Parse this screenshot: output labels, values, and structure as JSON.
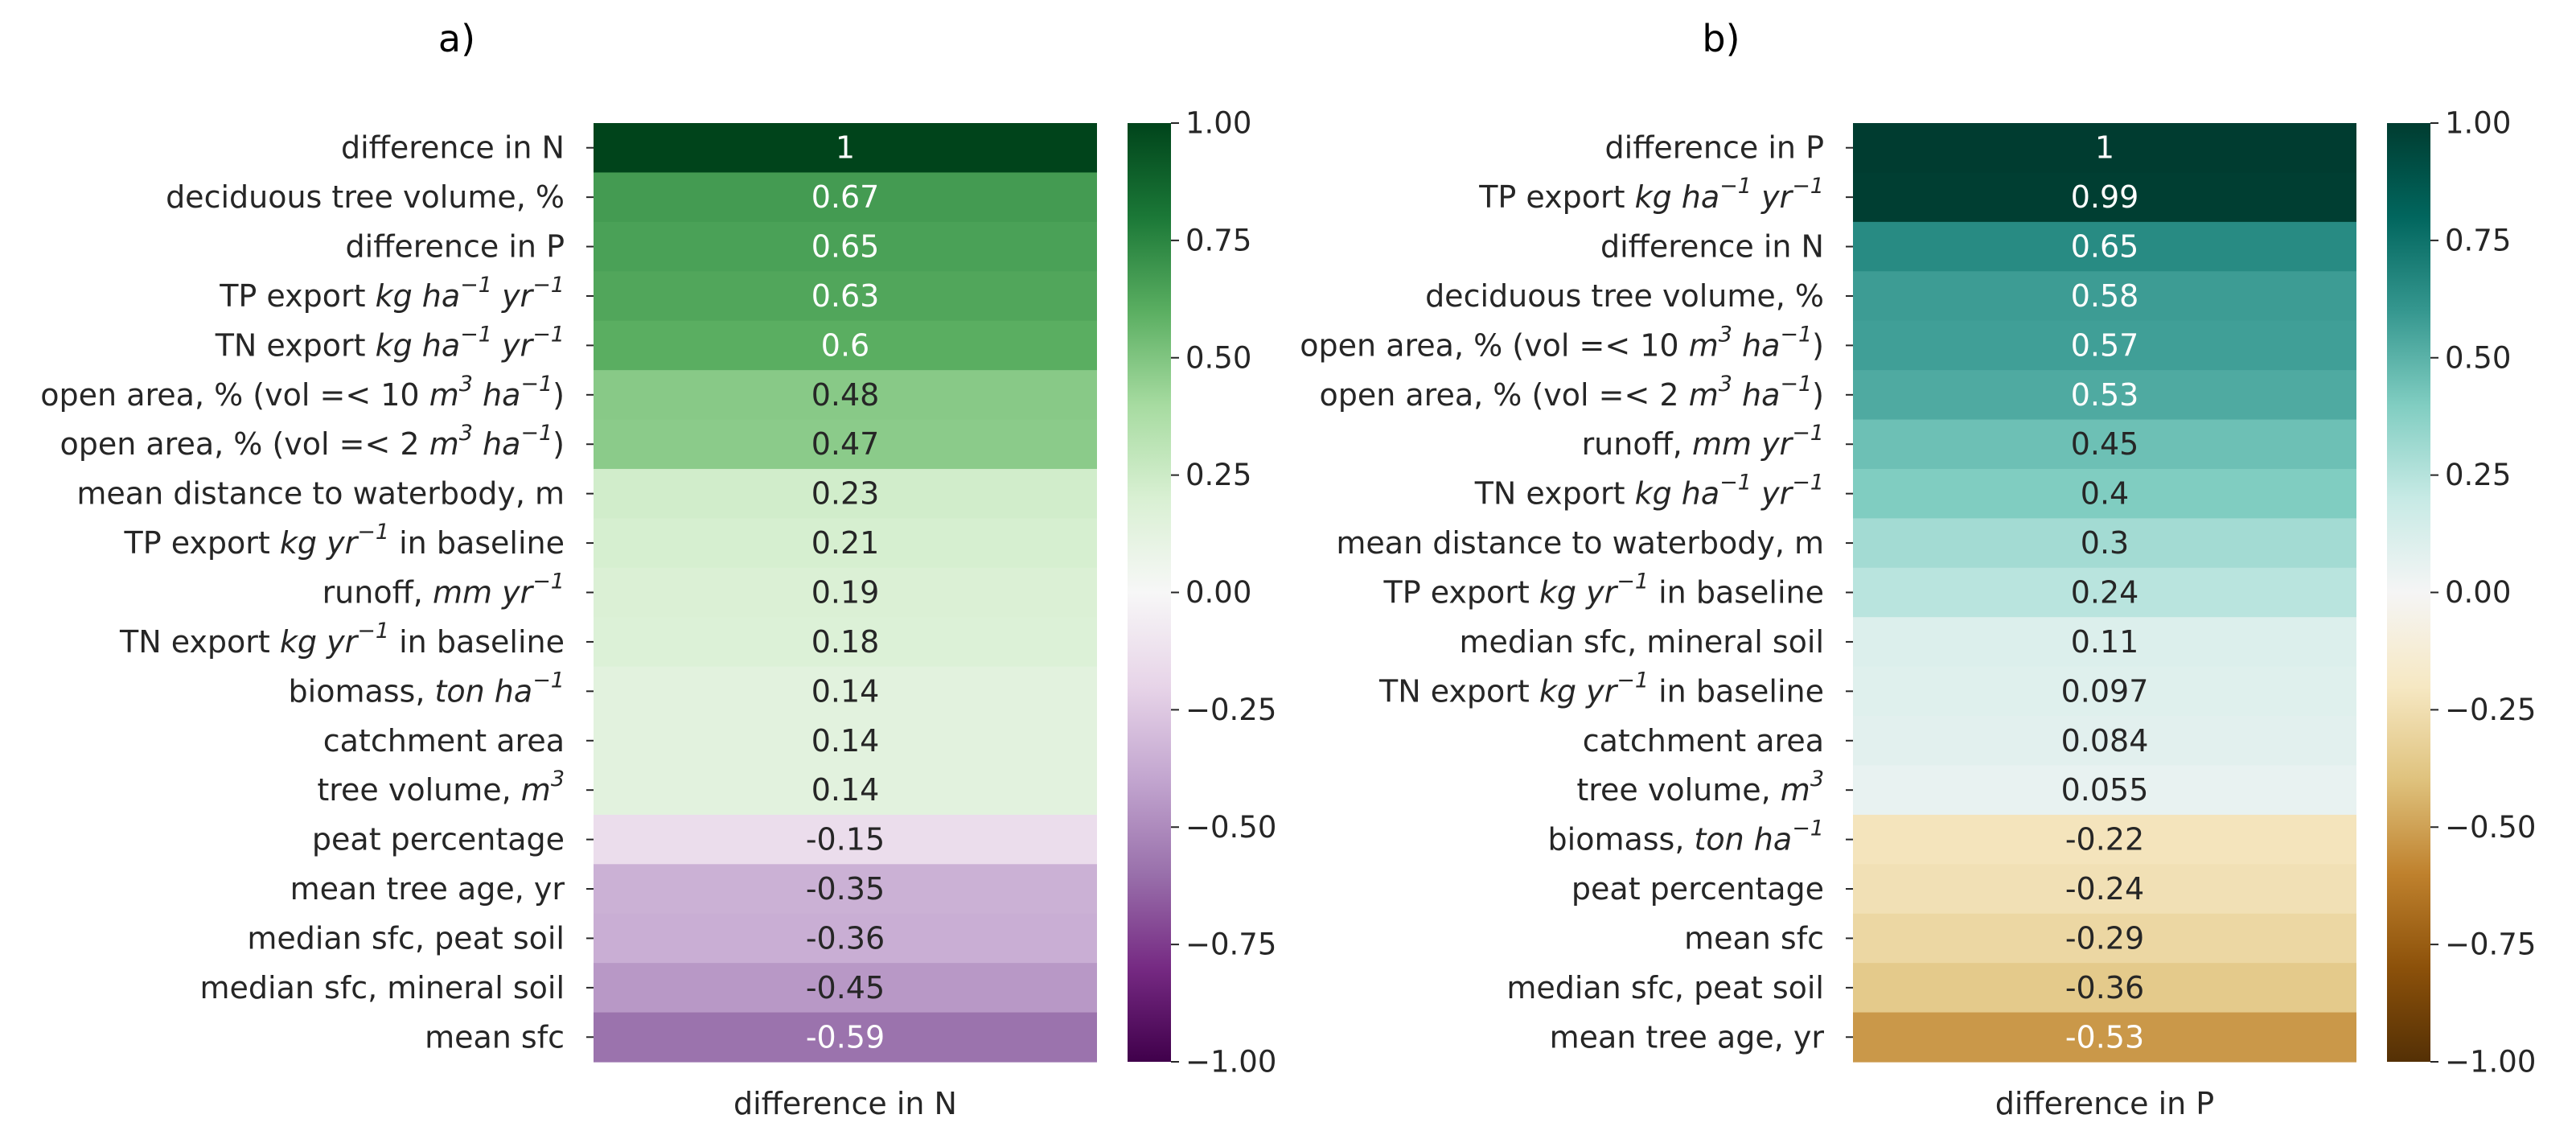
{
  "chart_data": [
    {
      "type": "heatmap",
      "panel_label": "a)",
      "xlabel": "difference in N",
      "colormap": "PRGn",
      "vmin": -1.0,
      "vmax": 1.0,
      "colorbar_ticks": [
        "1.00",
        "0.75",
        "0.50",
        "0.25",
        "0.00",
        "−0.25",
        "−0.50",
        "−0.75",
        "−1.00"
      ],
      "colorbar_tick_values": [
        1.0,
        0.75,
        0.5,
        0.25,
        0.0,
        -0.25,
        -0.5,
        -0.75,
        -1.0
      ],
      "rows": [
        {
          "segs": [
            {
              "t": "difference in N"
            }
          ],
          "label_value": "1",
          "value": 1.0
        },
        {
          "segs": [
            {
              "t": "deciduous tree volume, %"
            }
          ],
          "label_value": "0.67",
          "value": 0.67
        },
        {
          "segs": [
            {
              "t": "difference in P"
            }
          ],
          "label_value": "0.65",
          "value": 0.65
        },
        {
          "segs": [
            {
              "t": "TP export "
            },
            {
              "t": "kg ha",
              "i": true
            },
            {
              "t": "−1",
              "i": true,
              "s": true
            },
            {
              "t": " yr",
              "i": true
            },
            {
              "t": "−1",
              "i": true,
              "s": true
            }
          ],
          "label_value": "0.63",
          "value": 0.63
        },
        {
          "segs": [
            {
              "t": "TN export "
            },
            {
              "t": "kg ha",
              "i": true
            },
            {
              "t": "−1",
              "i": true,
              "s": true
            },
            {
              "t": " yr",
              "i": true
            },
            {
              "t": "−1",
              "i": true,
              "s": true
            }
          ],
          "label_value": "0.6",
          "value": 0.6
        },
        {
          "segs": [
            {
              "t": "open area, % (vol =< 10 "
            },
            {
              "t": "m",
              "i": true
            },
            {
              "t": "3",
              "i": true,
              "s": true
            },
            {
              "t": " ha",
              "i": true
            },
            {
              "t": "−1",
              "i": true,
              "s": true
            },
            {
              "t": ")"
            }
          ],
          "label_value": "0.48",
          "value": 0.48
        },
        {
          "segs": [
            {
              "t": "open area, % (vol =< 2 "
            },
            {
              "t": "m",
              "i": true
            },
            {
              "t": "3",
              "i": true,
              "s": true
            },
            {
              "t": " ha",
              "i": true
            },
            {
              "t": "−1",
              "i": true,
              "s": true
            },
            {
              "t": ")"
            }
          ],
          "label_value": "0.47",
          "value": 0.47
        },
        {
          "segs": [
            {
              "t": "mean distance to waterbody, m"
            }
          ],
          "label_value": "0.23",
          "value": 0.23
        },
        {
          "segs": [
            {
              "t": "TP export "
            },
            {
              "t": "kg yr",
              "i": true
            },
            {
              "t": "−1",
              "i": true,
              "s": true
            },
            {
              "t": " in baseline"
            }
          ],
          "label_value": "0.21",
          "value": 0.21
        },
        {
          "segs": [
            {
              "t": "runoff, "
            },
            {
              "t": "mm yr",
              "i": true
            },
            {
              "t": "−1",
              "i": true,
              "s": true
            }
          ],
          "label_value": "0.19",
          "value": 0.19
        },
        {
          "segs": [
            {
              "t": "TN export "
            },
            {
              "t": "kg yr",
              "i": true
            },
            {
              "t": "−1",
              "i": true,
              "s": true
            },
            {
              "t": " in baseline"
            }
          ],
          "label_value": "0.18",
          "value": 0.18
        },
        {
          "segs": [
            {
              "t": "biomass, "
            },
            {
              "t": "ton ha",
              "i": true
            },
            {
              "t": "−1",
              "i": true,
              "s": true
            }
          ],
          "label_value": "0.14",
          "value": 0.14
        },
        {
          "segs": [
            {
              "t": "catchment area"
            }
          ],
          "label_value": "0.14",
          "value": 0.14
        },
        {
          "segs": [
            {
              "t": "tree volume, "
            },
            {
              "t": "m",
              "i": true
            },
            {
              "t": "3",
              "i": true,
              "s": true
            }
          ],
          "label_value": "0.14",
          "value": 0.14
        },
        {
          "segs": [
            {
              "t": "peat percentage"
            }
          ],
          "label_value": "-0.15",
          "value": -0.15
        },
        {
          "segs": [
            {
              "t": "mean tree age, yr"
            }
          ],
          "label_value": "-0.35",
          "value": -0.35
        },
        {
          "segs": [
            {
              "t": "median sfc, peat soil"
            }
          ],
          "label_value": "-0.36",
          "value": -0.36
        },
        {
          "segs": [
            {
              "t": "median sfc, mineral soil"
            }
          ],
          "label_value": "-0.45",
          "value": -0.45
        },
        {
          "segs": [
            {
              "t": "mean sfc"
            }
          ],
          "label_value": "-0.59",
          "value": -0.59
        }
      ]
    },
    {
      "type": "heatmap",
      "panel_label": "b)",
      "xlabel": "difference in P",
      "colormap": "BrBG",
      "vmin": -1.0,
      "vmax": 1.0,
      "colorbar_ticks": [
        "1.00",
        "0.75",
        "0.50",
        "0.25",
        "0.00",
        "−0.25",
        "−0.50",
        "−0.75",
        "−1.00"
      ],
      "colorbar_tick_values": [
        1.0,
        0.75,
        0.5,
        0.25,
        0.0,
        -0.25,
        -0.5,
        -0.75,
        -1.0
      ],
      "rows": [
        {
          "segs": [
            {
              "t": "difference in P"
            }
          ],
          "label_value": "1",
          "value": 1.0
        },
        {
          "segs": [
            {
              "t": "TP export "
            },
            {
              "t": "kg ha",
              "i": true
            },
            {
              "t": "−1",
              "i": true,
              "s": true
            },
            {
              "t": " yr",
              "i": true
            },
            {
              "t": "−1",
              "i": true,
              "s": true
            }
          ],
          "label_value": "0.99",
          "value": 0.99
        },
        {
          "segs": [
            {
              "t": "difference in N"
            }
          ],
          "label_value": "0.65",
          "value": 0.65
        },
        {
          "segs": [
            {
              "t": "deciduous tree volume, %"
            }
          ],
          "label_value": "0.58",
          "value": 0.58
        },
        {
          "segs": [
            {
              "t": "open area, % (vol =< 10 "
            },
            {
              "t": "m",
              "i": true
            },
            {
              "t": "3",
              "i": true,
              "s": true
            },
            {
              "t": " ha",
              "i": true
            },
            {
              "t": "−1",
              "i": true,
              "s": true
            },
            {
              "t": ")"
            }
          ],
          "label_value": "0.57",
          "value": 0.57
        },
        {
          "segs": [
            {
              "t": "open area, % (vol =< 2 "
            },
            {
              "t": "m",
              "i": true
            },
            {
              "t": "3",
              "i": true,
              "s": true
            },
            {
              "t": " ha",
              "i": true
            },
            {
              "t": "−1",
              "i": true,
              "s": true
            },
            {
              "t": ")"
            }
          ],
          "label_value": "0.53",
          "value": 0.53
        },
        {
          "segs": [
            {
              "t": "runoff, "
            },
            {
              "t": "mm yr",
              "i": true
            },
            {
              "t": "−1",
              "i": true,
              "s": true
            }
          ],
          "label_value": "0.45",
          "value": 0.45
        },
        {
          "segs": [
            {
              "t": "TN export "
            },
            {
              "t": "kg ha",
              "i": true
            },
            {
              "t": "−1",
              "i": true,
              "s": true
            },
            {
              "t": " yr",
              "i": true
            },
            {
              "t": "−1",
              "i": true,
              "s": true
            }
          ],
          "label_value": "0.4",
          "value": 0.4
        },
        {
          "segs": [
            {
              "t": "mean distance to waterbody, m"
            }
          ],
          "label_value": "0.3",
          "value": 0.3
        },
        {
          "segs": [
            {
              "t": "TP export "
            },
            {
              "t": "kg yr",
              "i": true
            },
            {
              "t": "−1",
              "i": true,
              "s": true
            },
            {
              "t": " in baseline"
            }
          ],
          "label_value": "0.24",
          "value": 0.24
        },
        {
          "segs": [
            {
              "t": "median sfc, mineral soil"
            }
          ],
          "label_value": "0.11",
          "value": 0.11
        },
        {
          "segs": [
            {
              "t": "TN export "
            },
            {
              "t": "kg yr",
              "i": true
            },
            {
              "t": "−1",
              "i": true,
              "s": true
            },
            {
              "t": " in baseline"
            }
          ],
          "label_value": "0.097",
          "value": 0.097
        },
        {
          "segs": [
            {
              "t": "catchment area"
            }
          ],
          "label_value": "0.084",
          "value": 0.084
        },
        {
          "segs": [
            {
              "t": "tree volume, "
            },
            {
              "t": "m",
              "i": true
            },
            {
              "t": "3",
              "i": true,
              "s": true
            }
          ],
          "label_value": "0.055",
          "value": 0.055
        },
        {
          "segs": [
            {
              "t": "biomass, "
            },
            {
              "t": "ton ha",
              "i": true
            },
            {
              "t": "−1",
              "i": true,
              "s": true
            }
          ],
          "label_value": "-0.22",
          "value": -0.22
        },
        {
          "segs": [
            {
              "t": "peat percentage"
            }
          ],
          "label_value": "-0.24",
          "value": -0.24
        },
        {
          "segs": [
            {
              "t": "mean sfc"
            }
          ],
          "label_value": "-0.29",
          "value": -0.29
        },
        {
          "segs": [
            {
              "t": "median sfc, peat soil"
            }
          ],
          "label_value": "-0.36",
          "value": -0.36
        },
        {
          "segs": [
            {
              "t": "mean tree age, yr"
            }
          ],
          "label_value": "-0.53",
          "value": -0.53
        }
      ]
    }
  ]
}
